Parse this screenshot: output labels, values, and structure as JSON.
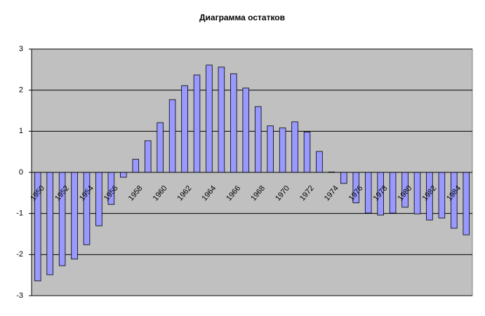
{
  "chart_data": {
    "type": "bar",
    "title": "Диаграмма остатков",
    "categories": [
      "1950",
      null,
      "1952",
      null,
      "1954",
      null,
      "1956",
      null,
      "1958",
      null,
      "1960",
      null,
      "1962",
      null,
      "1964",
      null,
      "1966",
      null,
      "1968",
      null,
      "1970",
      null,
      "1972",
      null,
      "1974",
      null,
      "1976",
      null,
      "1978",
      null,
      "1980",
      null,
      "1982",
      null,
      "1984",
      null
    ],
    "values": [
      -2.64,
      -2.49,
      -2.27,
      -2.11,
      -1.76,
      -1.3,
      -0.78,
      -0.12,
      0.32,
      0.77,
      1.21,
      1.77,
      2.11,
      2.37,
      2.61,
      2.56,
      2.4,
      2.05,
      1.6,
      1.13,
      1.08,
      1.23,
      0.98,
      0.51,
      0.01,
      -0.27,
      -0.74,
      -0.99,
      -1.04,
      -0.99,
      -0.85,
      -1.01,
      -1.16,
      -1.11,
      -1.36,
      -1.52
    ],
    "color": "#9999ff",
    "ylim": [
      -3,
      3
    ],
    "yticks": [
      -3,
      -2,
      -1,
      0,
      1,
      2,
      3
    ],
    "grid": true
  }
}
